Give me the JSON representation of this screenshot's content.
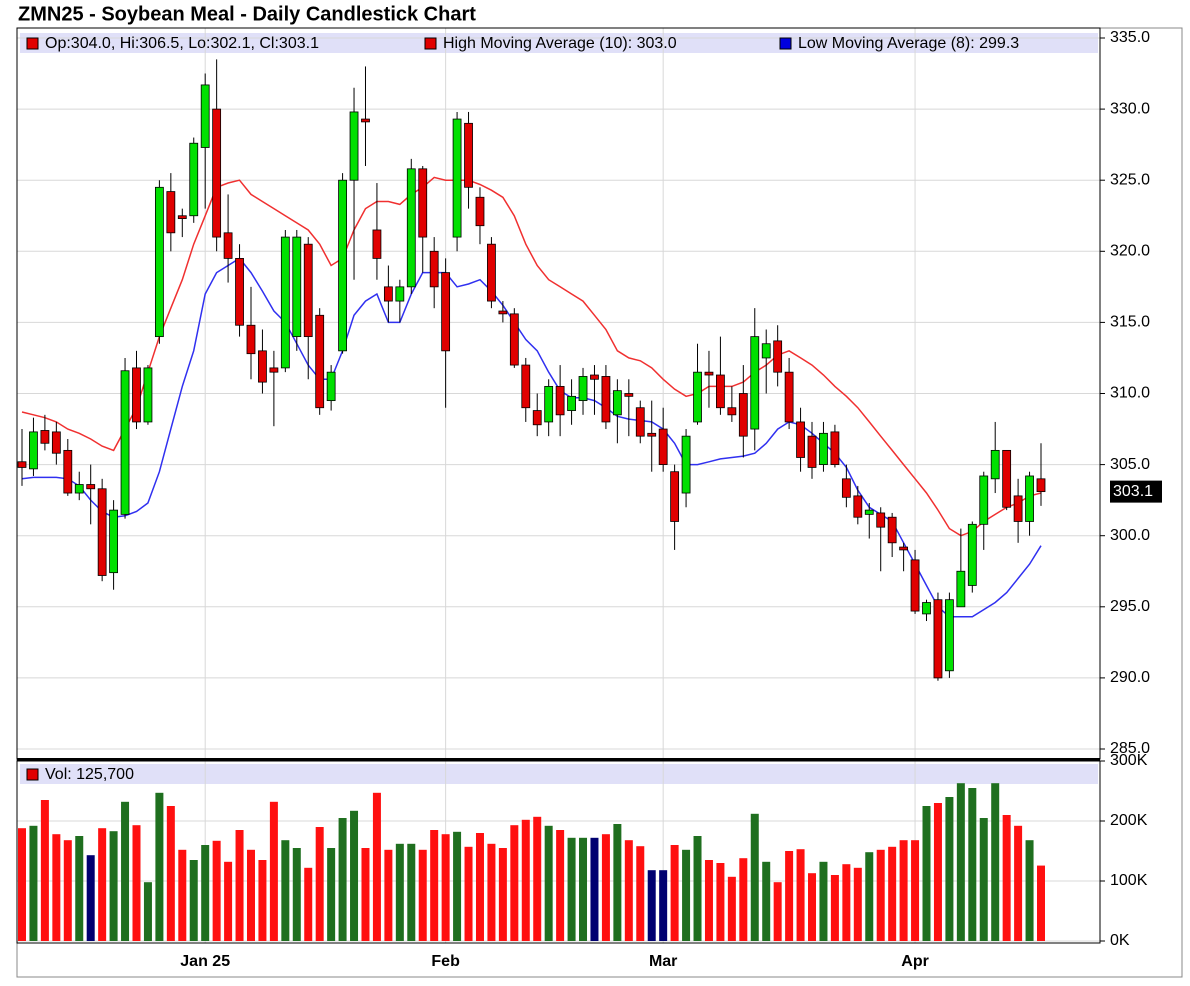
{
  "chart_data": {
    "type": "candlestick",
    "title": "ZMN25 - Soybean Meal - Daily Candlestick Chart",
    "ohlc_legend": "Op:304.0, Hi:306.5, Lo:302.1, Cl:303.1",
    "last_label": "303.1",
    "up_color": "#00e000",
    "down_color": "#e00000",
    "grid": true,
    "categories": [
      null,
      null,
      null,
      null,
      null,
      null,
      null,
      null,
      null,
      null,
      null,
      null,
      null,
      null,
      null,
      null,
      "Jan 25",
      null,
      null,
      null,
      null,
      null,
      null,
      null,
      null,
      null,
      null,
      null,
      null,
      null,
      null,
      null,
      null,
      null,
      null,
      null,
      null,
      "Feb",
      null,
      null,
      null,
      null,
      null,
      null,
      null,
      null,
      null,
      null,
      null,
      null,
      null,
      null,
      null,
      null,
      null,
      null,
      "Mar",
      null,
      null,
      null,
      null,
      null,
      null,
      null,
      null,
      null,
      null,
      null,
      null,
      null,
      null,
      null,
      null,
      null,
      null,
      null,
      null,
      null,
      "Apr",
      null,
      null,
      null,
      null,
      null,
      null,
      null,
      null,
      null,
      null,
      null
    ],
    "open": [
      305.2,
      304.7,
      307.4,
      307.3,
      306.0,
      303.0,
      303.6,
      303.3,
      297.4,
      301.5,
      311.8,
      308,
      314,
      324.2,
      322.5,
      322.5,
      327.3,
      330,
      321.3,
      319.5,
      314.8,
      313,
      311.8,
      311.8,
      314,
      320.5,
      315.5,
      309.5,
      313,
      325,
      329.3,
      321.5,
      317.5,
      316.5,
      317.5,
      325.8,
      320,
      318.5,
      321,
      329,
      323.8,
      320.5,
      315.8,
      315.6,
      312,
      308.8,
      308,
      310.5,
      308.8,
      309.5,
      311.3,
      311.2,
      308.5,
      310,
      309,
      307.2,
      307.5,
      304.5,
      303,
      308,
      311.5,
      311.3,
      309,
      310,
      307.5,
      312.5,
      313.7,
      311.5,
      308,
      307,
      305,
      307.3,
      304,
      302.8,
      301.5,
      301.6,
      301.3,
      299.2,
      298.3,
      294.5,
      295.5,
      290.5,
      295,
      296.5,
      300.8,
      304,
      306,
      302.8,
      301,
      304
    ],
    "high": [
      307.5,
      308.3,
      308.5,
      308.0,
      306.8,
      304.5,
      305,
      304,
      302.5,
      312.5,
      313,
      312,
      325,
      325.5,
      323,
      328,
      332.5,
      333.5,
      324,
      320.5,
      317.5,
      314.5,
      313,
      321.5,
      321.5,
      321,
      316,
      312,
      325.5,
      331.5,
      333,
      324.8,
      319,
      318,
      326.5,
      326,
      321,
      319.5,
      329.8,
      329.8,
      324.5,
      321,
      316.5,
      316,
      312.5,
      310,
      311,
      312,
      311,
      311.8,
      312,
      312,
      311,
      311,
      309.5,
      309.5,
      309,
      305,
      307.5,
      313.5,
      313,
      314,
      310.5,
      312,
      316,
      314.5,
      314.8,
      312.5,
      309,
      308,
      308,
      307.8,
      305,
      303.5,
      302.3,
      302,
      301.6,
      299.5,
      299,
      295.5,
      296,
      296,
      300.5,
      301,
      304.5,
      308,
      306,
      304,
      304.5,
      306.5
    ],
    "low": [
      303.5,
      304.2,
      306,
      305.0,
      302.8,
      302.5,
      300.8,
      296.8,
      296.2,
      301.2,
      307.5,
      307.8,
      313.5,
      320,
      321,
      322,
      323,
      320,
      317.8,
      314,
      311,
      310,
      307.7,
      311.5,
      313,
      311,
      308.5,
      308.8,
      312.8,
      318,
      326,
      318,
      315,
      315,
      317,
      318.5,
      316,
      309,
      320,
      323,
      320.5,
      316,
      315,
      311.8,
      308,
      307,
      307,
      307,
      307.8,
      308.5,
      308.5,
      307.5,
      306.5,
      307,
      306.5,
      304.5,
      304.5,
      299,
      302,
      307.8,
      309,
      308.5,
      308,
      305.5,
      306,
      310,
      310.5,
      307.5,
      304.5,
      304,
      304.5,
      304.8,
      302,
      300.8,
      299.8,
      297.5,
      298.5,
      297.5,
      294.5,
      294,
      289.8,
      290,
      295,
      296,
      299,
      303,
      301.8,
      299.5,
      300,
      302.1
    ],
    "close": [
      304.8,
      307.3,
      306.5,
      305.8,
      303.0,
      303.6,
      303.3,
      297.2,
      301.8,
      311.6,
      308,
      311.8,
      324.5,
      321.3,
      322.3,
      327.6,
      331.7,
      321,
      319.5,
      314.8,
      312.8,
      310.8,
      311.5,
      321,
      321,
      314,
      309,
      311.5,
      325,
      329.8,
      329.1,
      319.5,
      316.5,
      317.5,
      325.8,
      321,
      317.5,
      313,
      329.3,
      324.5,
      321.8,
      316.5,
      315.6,
      312,
      309,
      307.8,
      310.5,
      308.5,
      309.8,
      311.2,
      311.0,
      308,
      310.2,
      309.8,
      307,
      307,
      305,
      301,
      307,
      311.5,
      311.3,
      309,
      308.5,
      307,
      314,
      313.5,
      311.5,
      308,
      305.5,
      304.8,
      307.2,
      305,
      302.7,
      301.3,
      301.8,
      300.6,
      299.5,
      299,
      294.7,
      295.3,
      290,
      295.5,
      297.5,
      300.8,
      304.2,
      306,
      302,
      301,
      304.2,
      303.1
    ],
    "series": [
      {
        "name": "High Moving Average (10): 303.0",
        "color": "#f03030",
        "values": [
          308.7,
          308.5,
          308.3,
          308,
          307.5,
          307.2,
          306.8,
          306.3,
          306.0,
          307.5,
          309,
          311.5,
          314,
          316,
          318,
          320.5,
          322.5,
          324.5,
          324.8,
          325,
          324,
          323.5,
          323,
          322.5,
          322,
          321.5,
          320.5,
          319,
          319.5,
          321.5,
          323,
          323.5,
          323.5,
          323.3,
          324,
          324.5,
          325.2,
          325,
          325,
          325,
          324.7,
          324.3,
          323.8,
          322.5,
          320.5,
          319,
          318,
          317.5,
          317,
          316.5,
          315.5,
          314.5,
          313,
          312.5,
          312.3,
          311.8,
          311,
          310.3,
          309.8,
          310,
          310.5,
          310.5,
          310.5,
          310.8,
          311.5,
          312,
          312.7,
          313,
          312.5,
          312,
          311.3,
          310.5,
          309.8,
          309,
          308,
          307,
          306,
          305,
          304,
          303,
          301.8,
          300.5,
          300,
          300.3,
          301,
          301.5,
          302,
          302.3,
          302.8,
          303.0
        ]
      },
      {
        "name": "Low Moving Average (8): 299.3",
        "color": "#3030f0",
        "values": [
          304.0,
          304.1,
          304.1,
          304.1,
          304.0,
          303.5,
          302.5,
          301.7,
          301.3,
          301.4,
          301.7,
          302.3,
          304.5,
          307.5,
          310.5,
          313,
          317,
          318.5,
          319,
          319.5,
          318.5,
          317.2,
          315.8,
          315,
          313.5,
          312,
          311,
          311,
          313,
          315.5,
          316.5,
          317,
          315,
          315,
          317,
          318.5,
          318.5,
          318.5,
          317.5,
          317.7,
          318.0,
          317.2,
          316.2,
          315,
          313.8,
          313,
          311.5,
          310.2,
          309.7,
          309.7,
          309.5,
          309,
          308.4,
          308.2,
          308.1,
          308,
          307.5,
          306.5,
          305,
          305,
          305.2,
          305.4,
          305.5,
          305.6,
          305.8,
          306.5,
          307.5,
          308,
          307.8,
          307.2,
          306.5,
          305.8,
          304.8,
          303.2,
          302,
          301.5,
          301,
          299.5,
          298,
          296.5,
          295.0,
          294.3,
          294.3,
          294.3,
          294.8,
          295.3,
          296,
          297,
          298,
          299.3
        ]
      }
    ],
    "ylim": [
      285,
      335
    ],
    "yticks": [
      {
        "value": 285,
        "label": "285.0"
      },
      {
        "value": 290,
        "label": "290.0"
      },
      {
        "value": 295,
        "label": "295.0"
      },
      {
        "value": 300,
        "label": "300.0"
      },
      {
        "value": 305,
        "label": "305.0"
      },
      {
        "value": 310,
        "label": "310.0"
      },
      {
        "value": 315,
        "label": "315.0"
      },
      {
        "value": 320,
        "label": "320.0"
      },
      {
        "value": 325,
        "label": "325.0"
      },
      {
        "value": 330,
        "label": "330.0"
      },
      {
        "value": 335,
        "label": "335.0"
      }
    ],
    "volume": {
      "type": "bar",
      "label": "Vol: 125,700",
      "legend_color": "#e00000",
      "values": [
        188000,
        192000,
        235000,
        178000,
        168000,
        175000,
        143000,
        188000,
        183000,
        232000,
        193000,
        98000,
        247000,
        225000,
        152000,
        135000,
        160000,
        167000,
        132000,
        185000,
        152000,
        135000,
        232000,
        168000,
        155000,
        122000,
        190000,
        155000,
        205000,
        217000,
        155000,
        247000,
        152000,
        162000,
        162000,
        152000,
        185000,
        178000,
        182000,
        157000,
        180000,
        162000,
        155000,
        193000,
        202000,
        207000,
        192000,
        185000,
        172000,
        172000,
        172000,
        178000,
        195000,
        168000,
        158000,
        118000,
        118000,
        160000,
        152000,
        175000,
        135000,
        130000,
        107000,
        138000,
        212000,
        132000,
        98000,
        150000,
        153000,
        113000,
        132000,
        110000,
        128000,
        122000,
        148000,
        152000,
        157000,
        168000,
        168000,
        225000,
        230000,
        240000,
        263000,
        255000,
        205000,
        263000,
        210000,
        192000,
        168000,
        125700
      ],
      "colors": [
        "#ff1010",
        "#1f6f1f",
        "#ff1010",
        "#ff1010",
        "#ff1010",
        "#1f6f1f",
        "#000070",
        "#ff1010",
        "#1f6f1f",
        "#1f6f1f",
        "#ff1010",
        "#1f6f1f",
        "#1f6f1f",
        "#ff1010",
        "#ff1010",
        "#1f6f1f",
        "#1f6f1f",
        "#ff1010",
        "#ff1010",
        "#ff1010",
        "#ff1010",
        "#ff1010",
        "#ff1010",
        "#1f6f1f",
        "#1f6f1f",
        "#ff1010",
        "#ff1010",
        "#1f6f1f",
        "#1f6f1f",
        "#1f6f1f",
        "#ff1010",
        "#ff1010",
        "#ff1010",
        "#1f6f1f",
        "#1f6f1f",
        "#ff1010",
        "#ff1010",
        "#ff1010",
        "#1f6f1f",
        "#ff1010",
        "#ff1010",
        "#ff1010",
        "#ff1010",
        "#ff1010",
        "#ff1010",
        "#ff1010",
        "#1f6f1f",
        "#ff1010",
        "#1f6f1f",
        "#1f6f1f",
        "#000070",
        "#ff1010",
        "#1f6f1f",
        "#ff1010",
        "#ff1010",
        "#000070",
        "#000070",
        "#ff1010",
        "#1f6f1f",
        "#1f6f1f",
        "#ff1010",
        "#ff1010",
        "#ff1010",
        "#ff1010",
        "#1f6f1f",
        "#1f6f1f",
        "#ff1010",
        "#ff1010",
        "#ff1010",
        "#ff1010",
        "#1f6f1f",
        "#ff1010",
        "#ff1010",
        "#ff1010",
        "#1f6f1f",
        "#ff1010",
        "#ff1010",
        "#ff1010",
        "#ff1010",
        "#1f6f1f",
        "#ff1010",
        "#1f6f1f",
        "#1f6f1f",
        "#1f6f1f",
        "#1f6f1f",
        "#1f6f1f",
        "#ff1010",
        "#ff1010",
        "#1f6f1f",
        "#ff1010"
      ],
      "ylim": [
        0,
        300000
      ],
      "yticks": [
        {
          "value": 0,
          "label": "0K"
        },
        {
          "value": 100000,
          "label": "100K"
        },
        {
          "value": 200000,
          "label": "200K"
        },
        {
          "value": 300000,
          "label": "300K"
        }
      ]
    }
  }
}
